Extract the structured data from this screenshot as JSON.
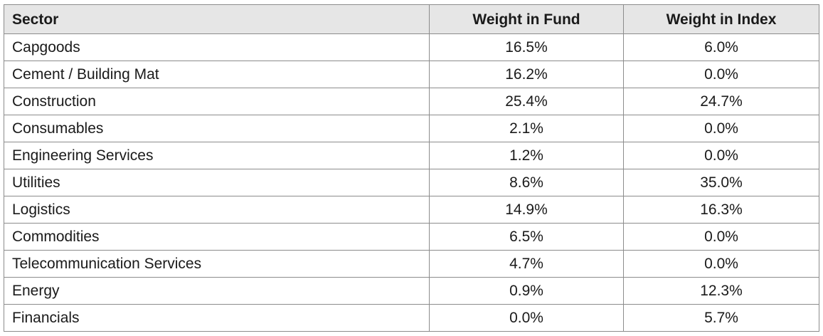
{
  "table": {
    "headers": [
      "Sector",
      "Weight in Fund",
      "Weight in Index"
    ],
    "rows": [
      [
        "Capgoods",
        "16.5%",
        "6.0%"
      ],
      [
        "Cement / Building Mat",
        "16.2%",
        "0.0%"
      ],
      [
        "Construction",
        "25.4%",
        "24.7%"
      ],
      [
        "Consumables",
        "2.1%",
        "0.0%"
      ],
      [
        "Engineering Services",
        "1.2%",
        "0.0%"
      ],
      [
        "Utilities",
        "8.6%",
        "35.0%"
      ],
      [
        "Logistics",
        "14.9%",
        "16.3%"
      ],
      [
        "Commodities",
        "6.5%",
        "0.0%"
      ],
      [
        "Telecommunication Services",
        "4.7%",
        "0.0%"
      ],
      [
        "Energy",
        "0.9%",
        "12.3%"
      ],
      [
        "Financials",
        "0.0%",
        "5.7%"
      ]
    ]
  },
  "colors": {
    "header_bg": "#e6e6e6",
    "border": "#8c8c8c",
    "text": "#1a1a1a"
  }
}
